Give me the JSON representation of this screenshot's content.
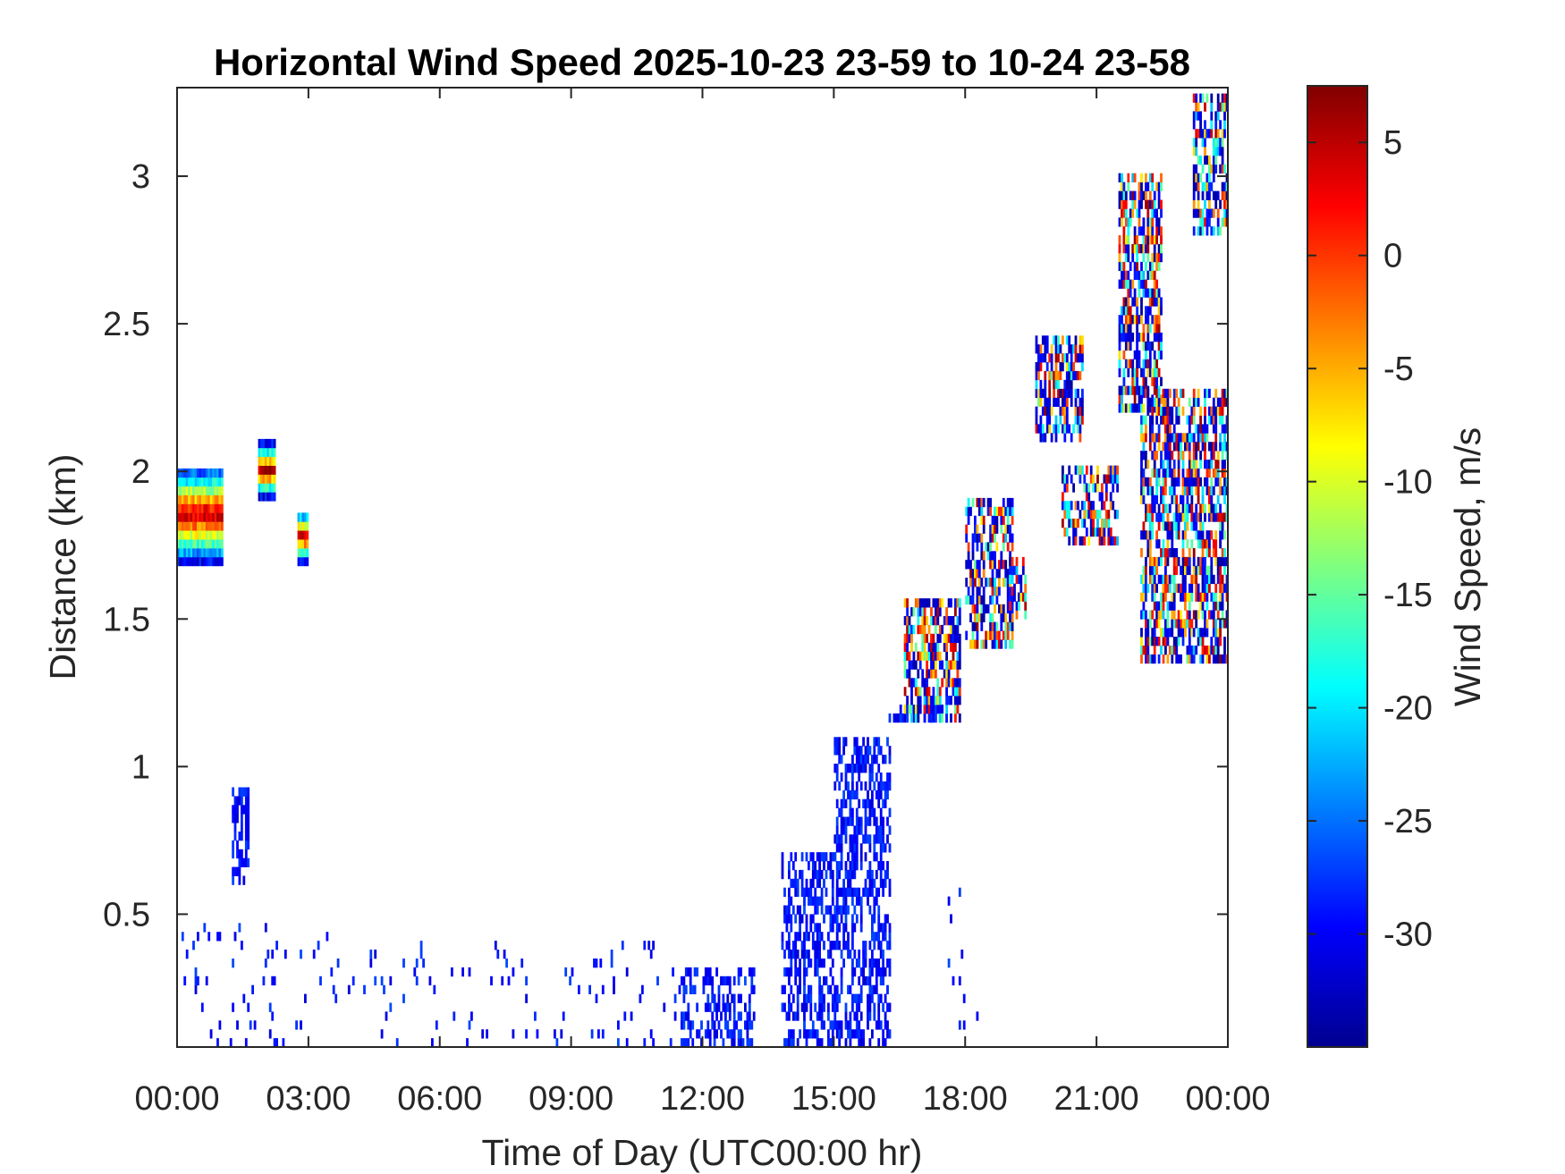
{
  "chart_data": {
    "type": "heatmap",
    "title": "Horizontal Wind Speed 2025-10-23 23-59 to 10-24 23-58",
    "xlabel": "Time of Day (UTC00:00 hr)",
    "ylabel": "Distance (km)",
    "xlim_hours": [
      0,
      24
    ],
    "ylim_km": [
      0.05,
      3.3
    ],
    "x_tick_hours": [
      0,
      3,
      6,
      9,
      12,
      15,
      18,
      21,
      24
    ],
    "x_tick_labels": [
      "00:00",
      "03:00",
      "06:00",
      "09:00",
      "12:00",
      "15:00",
      "18:00",
      "21:00",
      "00:00"
    ],
    "y_ticks": [
      0.5,
      1,
      1.5,
      2,
      2.5,
      3
    ],
    "y_tick_labels": [
      "0.5",
      "1",
      "1.5",
      "2",
      "2.5",
      "3"
    ],
    "colorbar": {
      "label": "Wind Speed, m/s",
      "range": [
        -35,
        7.5
      ],
      "ticks": [
        5,
        0,
        -5,
        -10,
        -15,
        -20,
        -25,
        -30
      ],
      "tick_labels": [
        "5",
        "0",
        "-5",
        "-10",
        "-15",
        "-20",
        "-25",
        "-30"
      ],
      "colormap": "jet"
    },
    "grid": false,
    "regions": [
      {
        "t": [
          0.0,
          1.05
        ],
        "d": [
          1.68,
          2.0
        ],
        "profile": "red-core"
      },
      {
        "t": [
          1.85,
          2.2
        ],
        "d": [
          1.9,
          2.08
        ],
        "profile": "red-core"
      },
      {
        "t": [
          2.75,
          2.95
        ],
        "d": [
          1.68,
          1.85
        ],
        "profile": "red-core"
      },
      {
        "t": [
          1.25,
          1.65
        ],
        "d": [
          0.6,
          0.92
        ],
        "profile": "blue"
      },
      {
        "t": [
          0.0,
          3.5
        ],
        "d": [
          0.05,
          0.5
        ],
        "profile": "blue-sparse"
      },
      {
        "t": [
          3.5,
          11.5
        ],
        "d": [
          0.05,
          0.4
        ],
        "profile": "blue-sparse"
      },
      {
        "t": [
          11.5,
          13.2
        ],
        "d": [
          0.05,
          0.3
        ],
        "profile": "blue"
      },
      {
        "t": [
          13.8,
          15.1
        ],
        "d": [
          0.05,
          0.7
        ],
        "profile": "blue"
      },
      {
        "t": [
          15.0,
          16.3
        ],
        "d": [
          0.05,
          1.1
        ],
        "profile": "blue"
      },
      {
        "t": [
          16.2,
          17.6
        ],
        "d": [
          1.15,
          1.2
        ],
        "profile": "blue"
      },
      {
        "t": [
          16.6,
          17.9
        ],
        "d": [
          1.15,
          1.55
        ],
        "profile": "mixed"
      },
      {
        "t": [
          17.6,
          18.3
        ],
        "d": [
          0.05,
          0.6
        ],
        "profile": "blue-sparse"
      },
      {
        "t": [
          18.0,
          19.1
        ],
        "d": [
          1.4,
          1.9
        ],
        "profile": "mixed"
      },
      {
        "t": [
          19.0,
          19.4
        ],
        "d": [
          1.5,
          1.7
        ],
        "profile": "mixed"
      },
      {
        "t": [
          19.6,
          20.7
        ],
        "d": [
          2.1,
          2.45
        ],
        "profile": "mixed"
      },
      {
        "t": [
          20.2,
          21.5
        ],
        "d": [
          1.75,
          2.0
        ],
        "profile": "mixed"
      },
      {
        "t": [
          21.5,
          22.5
        ],
        "d": [
          2.2,
          3.0
        ],
        "profile": "mixed"
      },
      {
        "t": [
          22.0,
          24.0
        ],
        "d": [
          1.35,
          2.25
        ],
        "profile": "mixed"
      },
      {
        "t": [
          23.2,
          24.0
        ],
        "d": [
          2.8,
          3.25
        ],
        "profile": "mixed"
      }
    ]
  }
}
